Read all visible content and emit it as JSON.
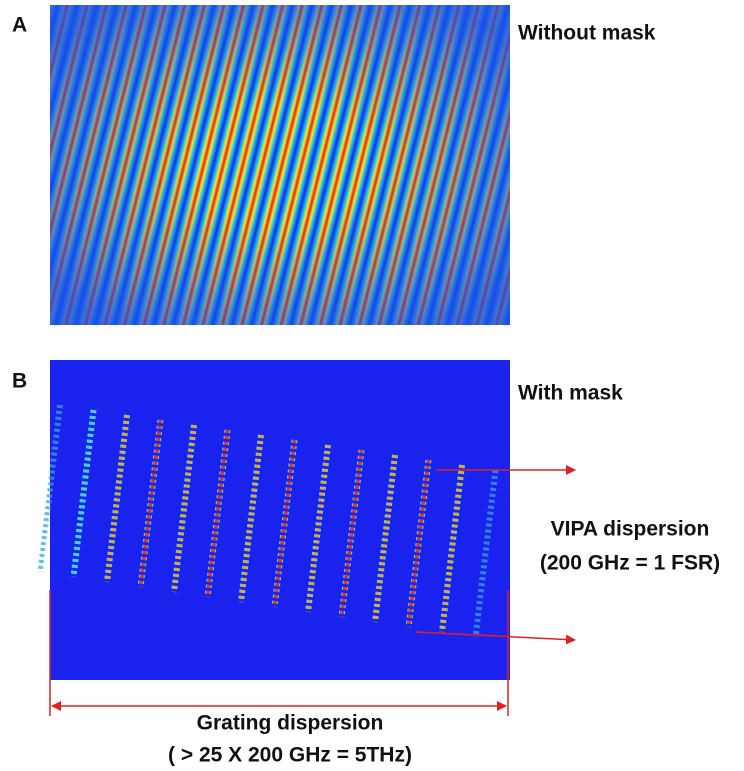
{
  "panels": [
    {
      "label": "A",
      "caption": "Without mask"
    },
    {
      "label": "B",
      "caption": "With mask"
    }
  ],
  "annotations": {
    "vipa": [
      "VIPA dispersion",
      "(200 GHz = 1 FSR)"
    ],
    "grating": [
      "Grating dispersion",
      "( > 25 X 200 GHz = 5THz)"
    ]
  }
}
